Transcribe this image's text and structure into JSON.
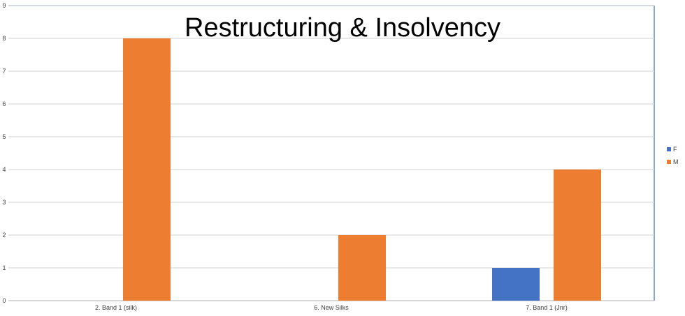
{
  "chart_data": {
    "type": "bar",
    "title": "Restructuring & Insolvency",
    "categories": [
      "2. Band 1 (silk)",
      "6. New Silks",
      "7. Band 1 (Jnr)"
    ],
    "series": [
      {
        "name": "F",
        "color": "#4472C4",
        "values": [
          0,
          0,
          1
        ]
      },
      {
        "name": "M",
        "color": "#ED7D31",
        "values": [
          8,
          2,
          4
        ]
      }
    ],
    "ylim": [
      0,
      9
    ],
    "yticks": [
      0,
      1,
      2,
      3,
      4,
      5,
      6,
      7,
      8,
      9
    ],
    "grid": true,
    "legend": "right"
  }
}
